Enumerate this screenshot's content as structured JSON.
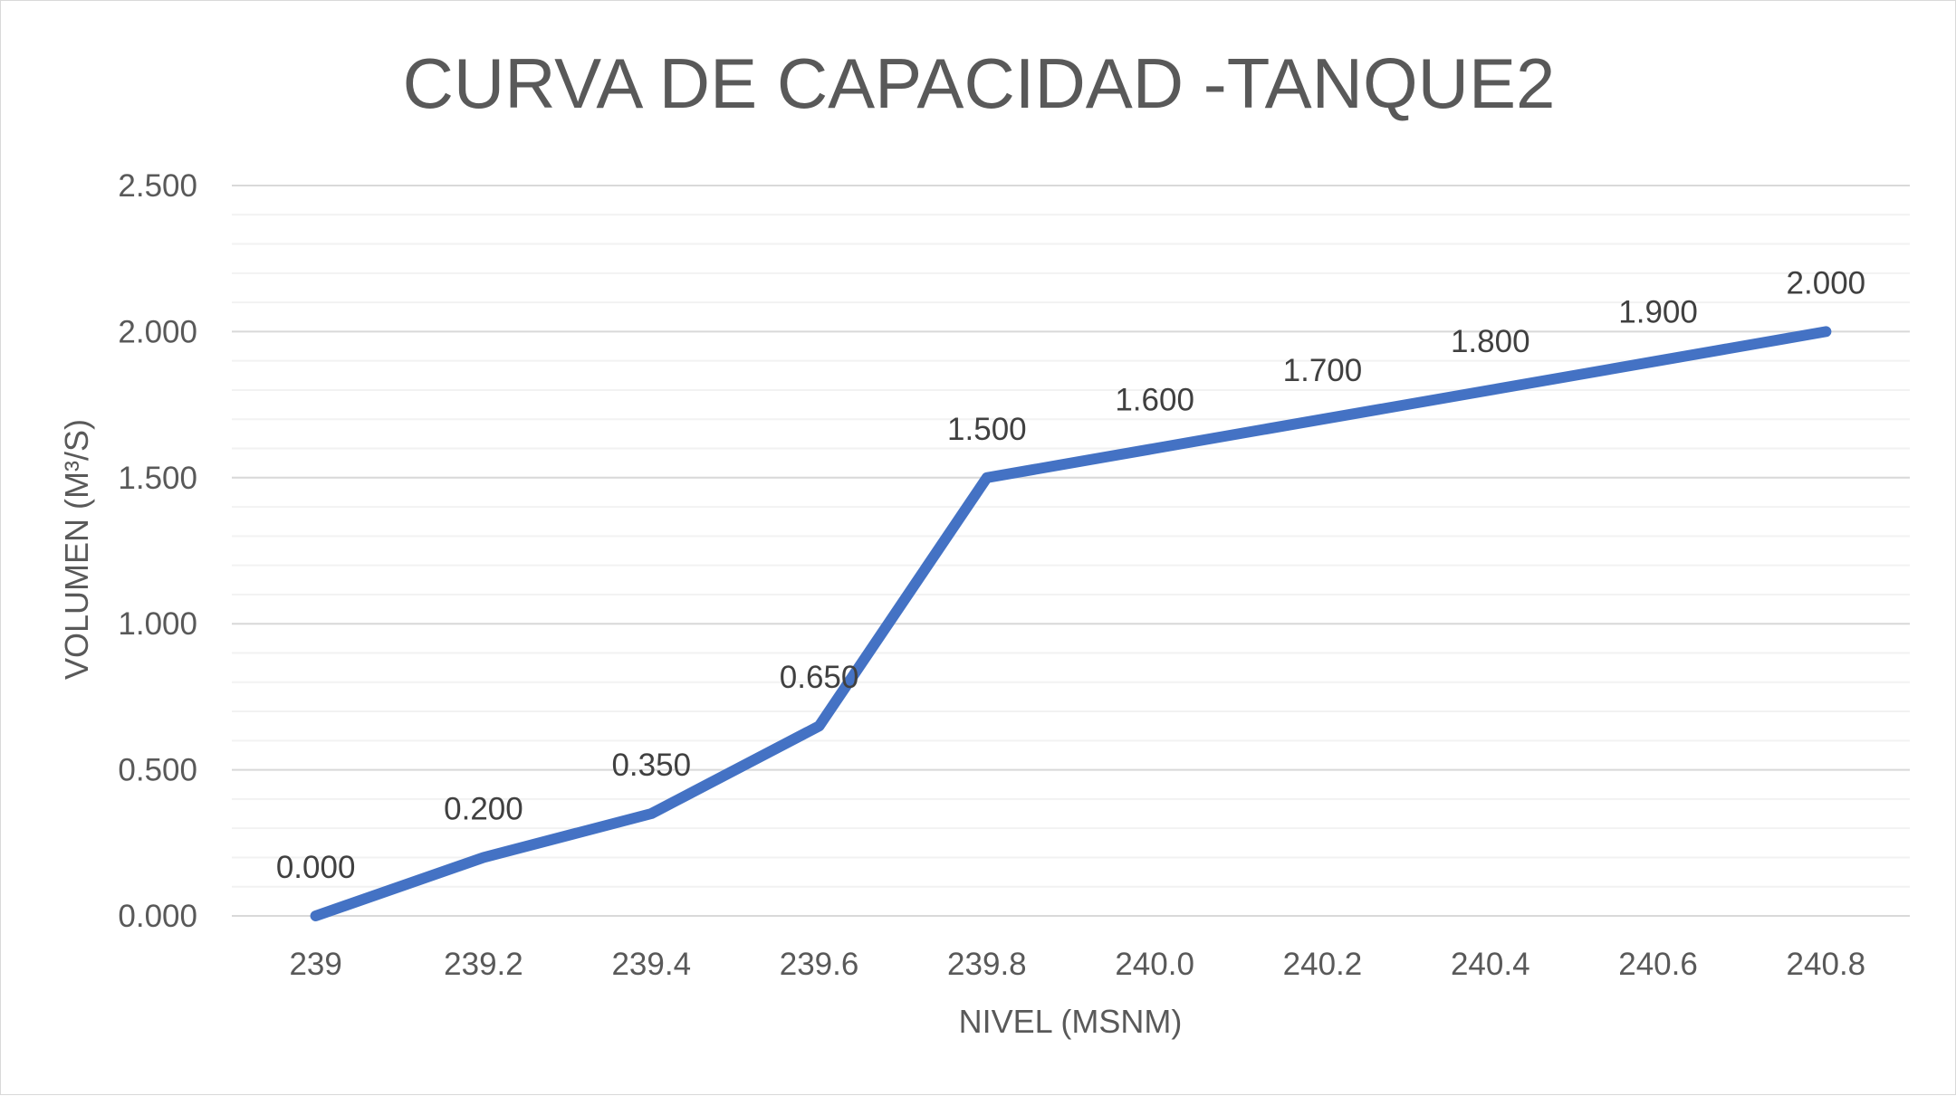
{
  "chart_data": {
    "type": "line",
    "title": "CURVA DE CAPACIDAD -TANQUE2",
    "xlabel": "NIVEL (MSNM)",
    "ylabel": "VOLUMEN (M³/S)",
    "categories": [
      "239",
      "239.2",
      "239.4",
      "239.6",
      "239.8",
      "240.0",
      "240.2",
      "240.4",
      "240.6",
      "240.8"
    ],
    "series": [
      {
        "values": [
          0.0,
          0.2,
          0.35,
          0.65,
          1.5,
          1.6,
          1.7,
          1.8,
          1.9,
          2.0
        ],
        "data_labels": [
          "0.000",
          "0.200",
          "0.350",
          "0.650",
          "1.500",
          "1.600",
          "1.700",
          "1.800",
          "1.900",
          "2.000"
        ],
        "color": "#4472c4"
      }
    ],
    "ylim": [
      0,
      2.5
    ],
    "yticks": [
      0,
      0.5,
      1.0,
      1.5,
      2.0,
      2.5
    ],
    "ytick_labels": [
      "0.000",
      "0.500",
      "1.000",
      "1.500",
      "2.000",
      "2.500"
    ],
    "y_minor_step": 0.1,
    "grid": true,
    "legend": "none",
    "colors": {
      "line": "#4472c4",
      "major_grid": "#d9d9d9",
      "minor_grid": "#f2f2f2",
      "text": "#595959",
      "label_text": "#404040"
    }
  }
}
